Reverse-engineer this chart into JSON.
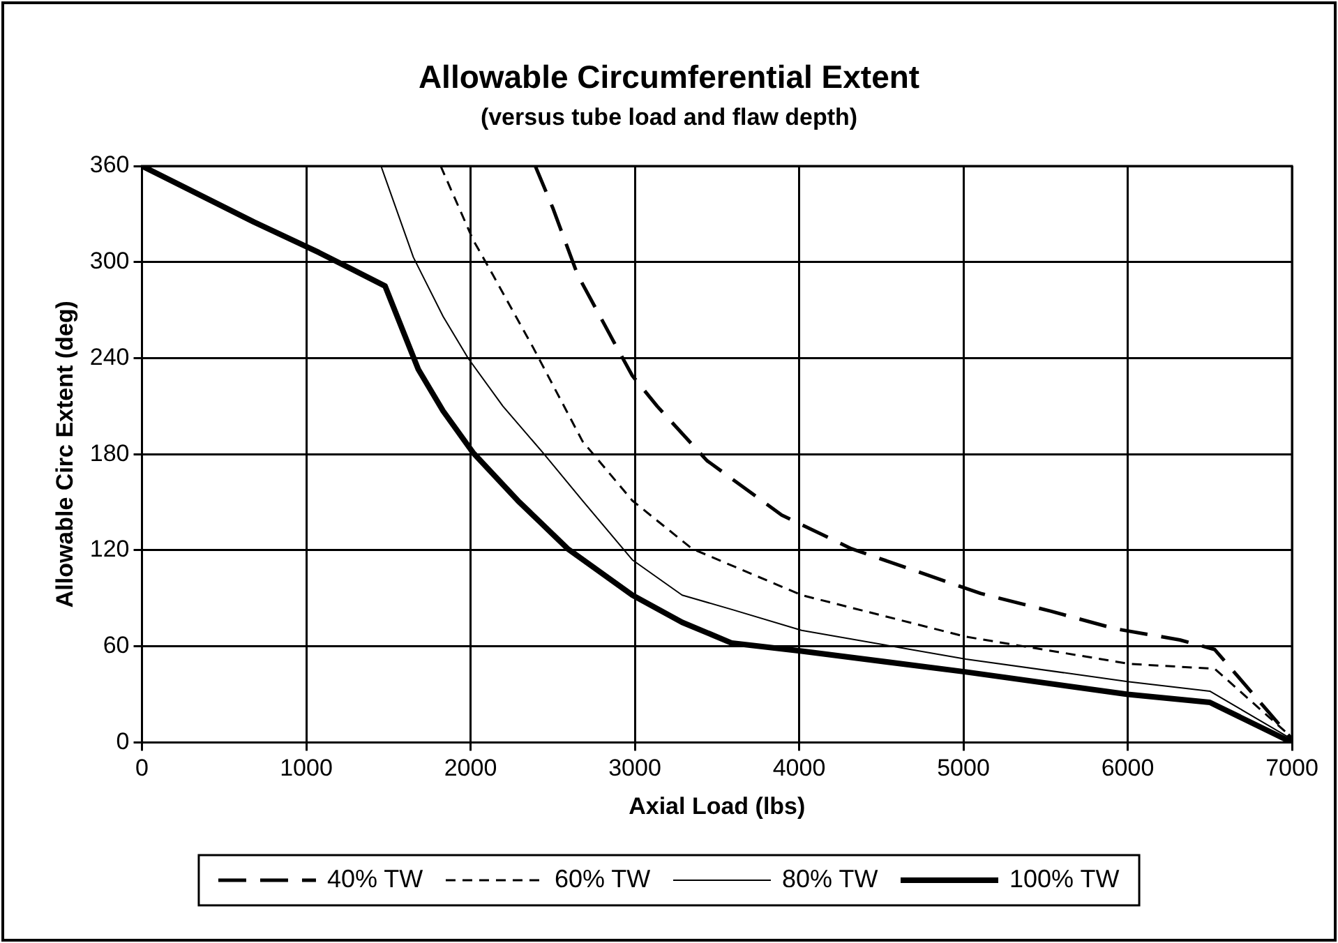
{
  "chart_data": {
    "type": "line",
    "title": "Allowable Circumferential Extent",
    "subtitle": "(versus tube load and flaw depth)",
    "xlabel": "Axial Load (lbs)",
    "ylabel": "Allowable Circ Extent (deg)",
    "xlim": [
      0,
      7000
    ],
    "xticks": [
      0,
      1000,
      2000,
      3000,
      4000,
      5000,
      6000,
      7000
    ],
    "ylim": [
      0,
      360
    ],
    "yticks": [
      0,
      60,
      120,
      180,
      240,
      300,
      360
    ],
    "grid": true,
    "legend": "bottom",
    "marker": "none",
    "series": [
      {
        "name": "40% TW",
        "color": "#000000",
        "line_style": "dashed",
        "x": [
          2394,
          2500,
          2652,
          2894,
          2985,
          3136,
          3439,
          3894,
          4318,
          4712,
          5106,
          5530,
          5924,
          6318,
          6530,
          7000
        ],
        "values": [
          360,
          334,
          292,
          246,
          229,
          210,
          176,
          142,
          121,
          107,
          93,
          82,
          71,
          64,
          58,
          2
        ]
      },
      {
        "name": "60% TW",
        "color": "#000000",
        "line_style": "dashed",
        "x": [
          1818,
          2015,
          2136,
          2379,
          2682,
          2985,
          3348,
          4015,
          5015,
          6015,
          6530,
          7000
        ],
        "values": [
          360,
          314,
          292,
          247,
          188,
          151,
          121,
          92,
          66,
          49,
          46,
          3
        ]
      },
      {
        "name": "80% TW",
        "color": "#000000",
        "line_style": "solid",
        "x": [
          1455,
          1652,
          1833,
          1985,
          2197,
          2440,
          2682,
          2985,
          3288,
          3591,
          4015,
          5015,
          6000,
          6500,
          7000
        ],
        "values": [
          360,
          303,
          266,
          240,
          210,
          181,
          151,
          114,
          92,
          83,
          70,
          52,
          38,
          32,
          2
        ]
      },
      {
        "name": "100% TW",
        "color": "#000000",
        "line_style": "solid",
        "x": [
          0,
          682,
          1076,
          1480,
          1682,
          1833,
          2015,
          2288,
          2591,
          2985,
          3288,
          3591,
          4015,
          5015,
          6000,
          6500,
          7000
        ],
        "values": [
          360,
          325,
          306,
          285,
          233,
          207,
          181,
          151,
          121,
          92,
          75,
          62,
          57,
          44,
          30,
          25,
          0
        ]
      }
    ]
  }
}
